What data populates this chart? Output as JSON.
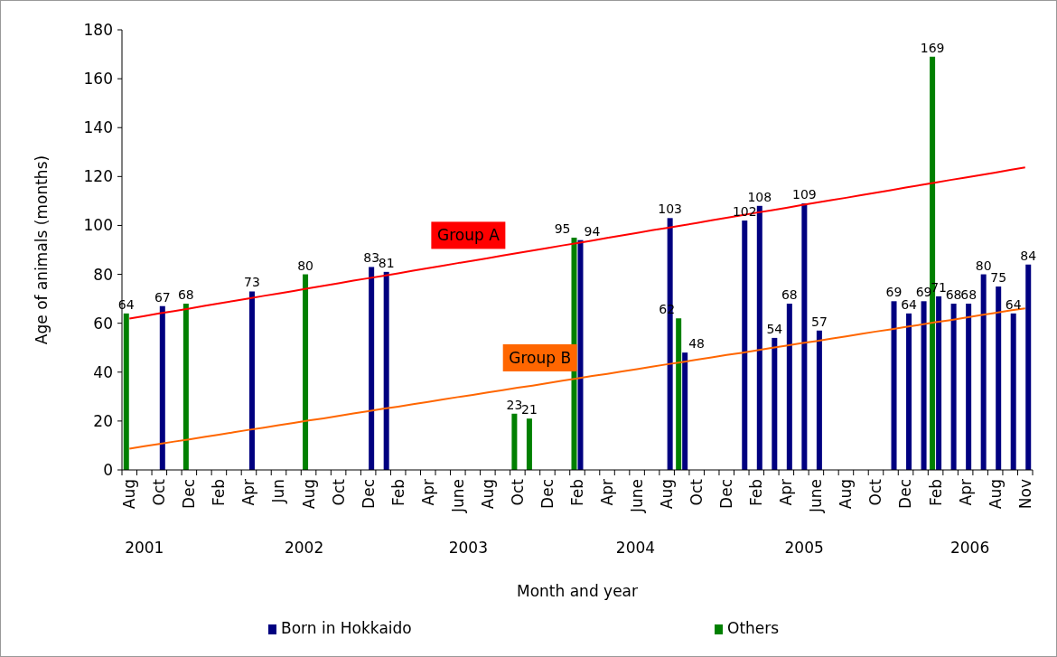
{
  "chart_data": {
    "type": "bar",
    "xlabel": "Month and year",
    "ylabel": "Age of animals (months)",
    "categories": [
      "Aug",
      null,
      "Oct",
      null,
      "Dec",
      null,
      "Feb",
      null,
      "Apr",
      null,
      "Jun",
      null,
      "Aug",
      null,
      "Oct",
      null,
      "Dec",
      null,
      "Feb",
      null,
      "Apr",
      null,
      "June",
      null,
      "Aug",
      null,
      "Oct",
      null,
      "Dec",
      null,
      "Feb",
      null,
      "Apr",
      null,
      "June",
      null,
      "Aug",
      null,
      "Oct",
      null,
      "Dec",
      null,
      "Feb",
      null,
      "Apr",
      null,
      "June",
      null,
      "Aug",
      null,
      "Oct",
      null,
      "Dec",
      null,
      "Feb",
      null,
      "Apr",
      null,
      "Aug",
      null,
      "Nov"
    ],
    "series": [
      {
        "name": "Born in Hokkaido",
        "color": "#000080",
        "values": [
          null,
          null,
          67,
          null,
          null,
          null,
          null,
          null,
          73,
          null,
          null,
          null,
          null,
          null,
          null,
          null,
          83,
          81,
          null,
          null,
          null,
          null,
          null,
          null,
          null,
          null,
          null,
          null,
          null,
          null,
          94,
          null,
          null,
          null,
          null,
          null,
          103,
          48,
          null,
          null,
          null,
          102,
          108,
          54,
          68,
          109,
          57,
          null,
          null,
          null,
          null,
          69,
          64,
          69,
          71,
          68,
          68,
          80,
          75,
          64,
          84
        ],
        "value_labels": [
          null,
          null,
          "67",
          null,
          null,
          null,
          null,
          null,
          "73",
          null,
          null,
          null,
          null,
          null,
          null,
          null,
          "83",
          "81",
          null,
          null,
          null,
          null,
          null,
          null,
          null,
          null,
          null,
          null,
          null,
          null,
          "94",
          null,
          null,
          null,
          null,
          null,
          "103",
          "48",
          null,
          null,
          null,
          "102",
          "108",
          "54",
          "68",
          "109",
          "57",
          null,
          null,
          null,
          null,
          "69",
          "64",
          "69",
          "71",
          "68",
          "68",
          "80",
          "75",
          "64",
          "84"
        ]
      },
      {
        "name": "Others",
        "color": "#008000",
        "values": [
          64,
          null,
          null,
          null,
          68,
          null,
          null,
          null,
          null,
          null,
          null,
          null,
          80,
          null,
          null,
          null,
          null,
          null,
          null,
          null,
          null,
          null,
          null,
          null,
          null,
          null,
          23,
          21,
          null,
          null,
          95,
          null,
          null,
          null,
          null,
          null,
          null,
          62,
          null,
          null,
          null,
          null,
          null,
          null,
          null,
          null,
          null,
          null,
          null,
          null,
          null,
          null,
          null,
          null,
          169,
          null,
          null,
          null,
          null,
          null,
          null
        ],
        "value_labels": [
          "64",
          null,
          null,
          null,
          "68",
          null,
          null,
          null,
          null,
          null,
          null,
          null,
          "80",
          null,
          null,
          null,
          null,
          null,
          null,
          null,
          null,
          null,
          null,
          null,
          null,
          null,
          "23",
          "21",
          null,
          null,
          "95",
          null,
          null,
          null,
          null,
          null,
          null,
          "62",
          null,
          null,
          null,
          null,
          null,
          null,
          null,
          null,
          null,
          null,
          null,
          null,
          null,
          null,
          null,
          null,
          "169",
          null,
          null,
          null,
          null,
          null,
          null
        ]
      },
      {
        "name": "Group A",
        "type": "line",
        "color": "#ff0000",
        "values": [
          61.9,
          62.9,
          64.0,
          65.0,
          66.0,
          67.1,
          68.1,
          69.1,
          70.1,
          71.2,
          72.2,
          73.2,
          74.3,
          75.3,
          76.3,
          77.4,
          78.4,
          79.4,
          80.4,
          81.5,
          82.5,
          83.5,
          84.6,
          85.6,
          86.6,
          87.7,
          88.7,
          89.7,
          90.7,
          91.8,
          92.8,
          93.8,
          94.9,
          95.9,
          96.9,
          98.0,
          99.0,
          100.0,
          101.0,
          102.1,
          103.1,
          104.1,
          105.2,
          106.2,
          107.2,
          108.3,
          109.3,
          110.3,
          111.3,
          112.4,
          113.4,
          114.4,
          115.5,
          116.5,
          117.5,
          118.6,
          119.6,
          120.6,
          121.6,
          122.7,
          123.7
        ]
      },
      {
        "name": "Group B",
        "type": "line",
        "color": "#ff6600",
        "values": [
          8.7,
          9.7,
          10.6,
          11.6,
          12.5,
          13.5,
          14.4,
          15.4,
          16.4,
          17.3,
          18.3,
          19.2,
          20.2,
          21.1,
          22.1,
          23.1,
          24.0,
          25.0,
          25.9,
          26.9,
          27.8,
          28.8,
          29.8,
          30.7,
          31.7,
          32.6,
          33.6,
          34.5,
          35.5,
          36.5,
          37.4,
          38.4,
          39.3,
          40.3,
          41.2,
          42.2,
          43.2,
          44.1,
          45.1,
          46.0,
          47.0,
          47.9,
          48.9,
          49.9,
          50.8,
          51.8,
          52.7,
          53.7,
          54.6,
          55.6,
          56.6,
          57.5,
          58.5,
          59.4,
          60.4,
          61.3,
          62.3,
          63.3,
          64.2,
          65.2,
          66.1
        ]
      }
    ],
    "ylim": [
      0,
      180
    ],
    "yticks": [
      0,
      20,
      40,
      60,
      80,
      100,
      120,
      140,
      160,
      180
    ],
    "legend": "bottom",
    "line_style": "solid",
    "marker": "none",
    "annotations": [
      "2001",
      "2002",
      "2003",
      "2004",
      "2005",
      "2006"
    ]
  }
}
